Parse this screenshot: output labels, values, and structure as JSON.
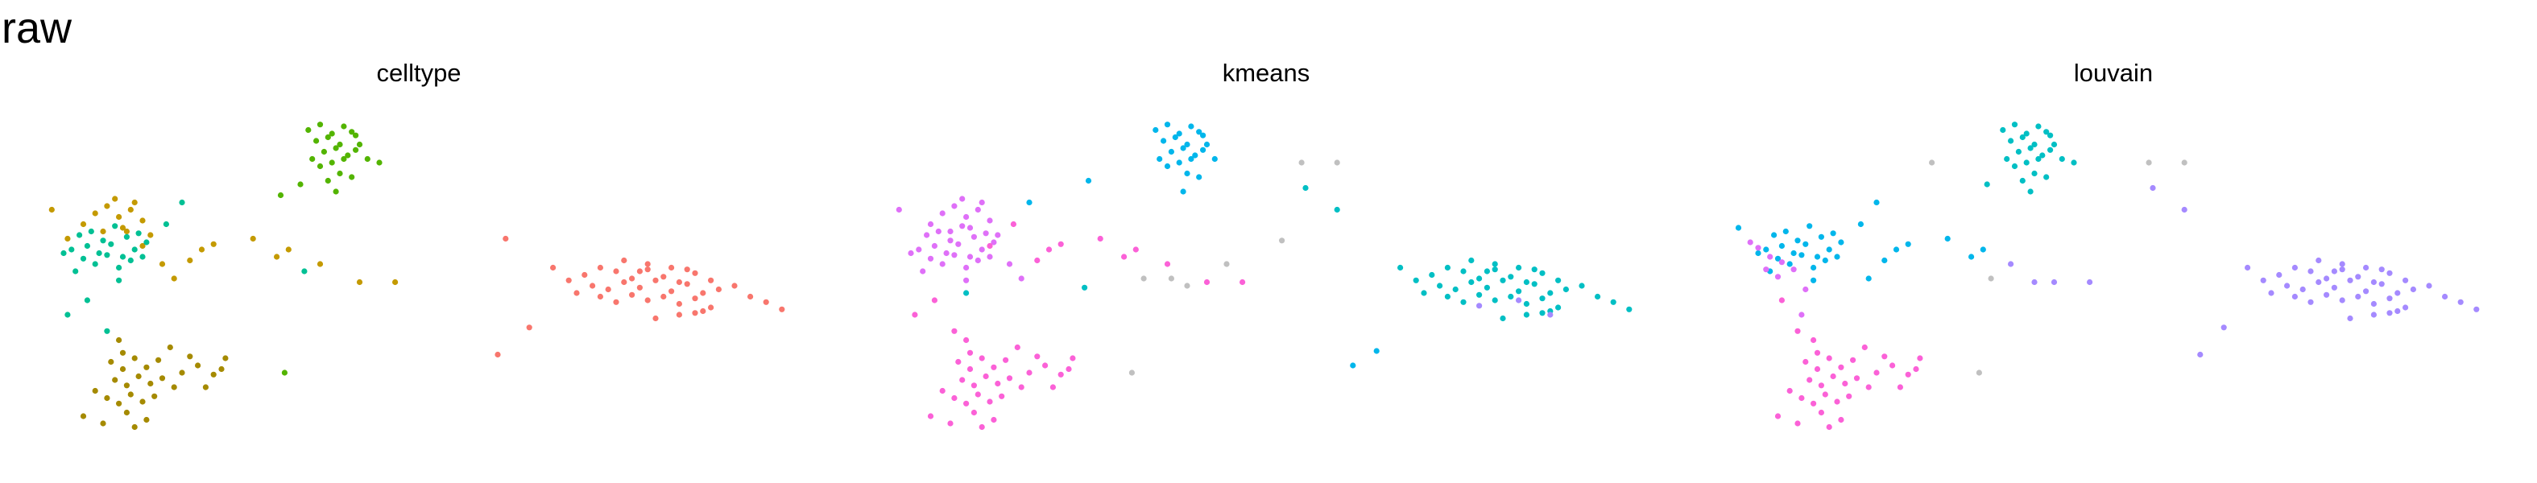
{
  "figure": {
    "title": "raw"
  },
  "chart_data": [
    {
      "type": "scatter",
      "title": "celltype",
      "xlabel": "",
      "ylabel": "",
      "xlim": [
        -10,
        10
      ],
      "ylim": [
        -10,
        10
      ],
      "grid": false,
      "series": [
        {
          "color": "#f8766d",
          "x": [
            4.2,
            4.6,
            5.0,
            5.4,
            5.8,
            6.2,
            6.6,
            7.0,
            7.4,
            4.4,
            4.8,
            5.2,
            5.6,
            6.0,
            6.4,
            6.8,
            7.2,
            7.6,
            8.0,
            4.6,
            5.0,
            5.4,
            5.8,
            6.2,
            6.6,
            7.0,
            7.4,
            5.2,
            5.8,
            6.4,
            7.0,
            3.8,
            3.4,
            8.4,
            8.8,
            9.2,
            6.0,
            6.6,
            7.2,
            5.6,
            6.8,
            4.0
          ],
          "y": [
            0.6,
            1.0,
            0.8,
            0.4,
            0.9,
            0.5,
            0.2,
            0.7,
            0.3,
            0.0,
            -0.2,
            0.2,
            -0.1,
            0.3,
            -0.3,
            0.1,
            -0.4,
            -0.2,
            0.0,
            -0.6,
            -0.9,
            -0.5,
            -0.8,
            -0.6,
            -1.0,
            -0.7,
            -1.2,
            1.4,
            1.2,
            1.0,
            -1.5,
            0.3,
            1.0,
            -0.6,
            -0.9,
            -1.3,
            -1.8,
            -1.6,
            -1.4,
            0.8,
            0.9,
            -0.4
          ]
        },
        {
          "color": "#c49a00",
          "x": [
            -8.2,
            -7.9,
            -7.6,
            -7.3,
            -7.0,
            -8.5,
            -8.0,
            -7.5,
            -7.2,
            -6.8,
            -7.7,
            -6.5,
            -6.2,
            -5.5,
            -5.8,
            -5.2,
            -4.2,
            -3.6,
            -3.3,
            -2.5,
            -1.5,
            -0.6,
            -8.9,
            -9.3,
            -7.4,
            -7.0
          ],
          "y": [
            4.0,
            4.4,
            3.8,
            4.2,
            3.6,
            3.4,
            3.0,
            3.2,
            4.6,
            2.8,
            4.8,
            1.2,
            0.4,
            2.0,
            1.4,
            2.3,
            2.6,
            1.6,
            2.0,
            1.2,
            0.2,
            0.2,
            2.6,
            4.2,
            3.0,
            2.2
          ]
        },
        {
          "color": "#53b400",
          "x": [
            -2.8,
            -2.5,
            -2.2,
            -1.9,
            -2.6,
            -2.3,
            -2.0,
            -1.7,
            -2.4,
            -2.1,
            -1.8,
            -1.5,
            -2.7,
            -2.2,
            -1.9,
            -1.6,
            -2.5,
            -2.0,
            -1.7,
            -1.3,
            -3.0,
            -2.1,
            -1.6,
            -1.0,
            -3.5,
            -2.3
          ],
          "y": [
            8.6,
            8.9,
            8.4,
            8.8,
            8.0,
            8.2,
            7.8,
            8.5,
            7.4,
            7.6,
            7.2,
            7.8,
            7.0,
            6.8,
            7.0,
            8.3,
            6.6,
            6.2,
            6.0,
            7.0,
            5.6,
            5.2,
            7.5,
            6.8,
            5.0,
            5.8
          ]
        },
        {
          "color": "#a58aff",
          "x": [],
          "y": []
        },
        {
          "color": "#00c094",
          "x": [
            -8.6,
            -8.3,
            -8.0,
            -7.7,
            -7.4,
            -7.1,
            -8.8,
            -8.4,
            -8.1,
            -7.8,
            -7.5,
            -7.2,
            -6.9,
            -8.5,
            -8.2,
            -7.9,
            -7.6,
            -7.3,
            -9.0,
            -7.0,
            -8.7,
            -7.6,
            -8.4,
            -7.9,
            -8.9,
            -6.0,
            -6.4,
            -2.9
          ],
          "y": [
            2.8,
            3.0,
            2.5,
            3.3,
            2.7,
            2.9,
            2.0,
            2.2,
            1.8,
            2.3,
            1.6,
            2.0,
            2.4,
            1.5,
            1.2,
            1.7,
            1.0,
            1.4,
            1.8,
            1.6,
            0.8,
            0.3,
            -0.8,
            -2.5,
            -1.6,
            4.6,
            3.4,
            0.8
          ]
        },
        {
          "color": "#a58a00",
          "x": [
            -7.8,
            -7.5,
            -7.2,
            -6.9,
            -6.6,
            -7.7,
            -7.4,
            -7.1,
            -6.8,
            -6.5,
            -6.2,
            -7.9,
            -7.6,
            -7.3,
            -7.0,
            -6.7,
            -8.2,
            -8.5,
            -7.4,
            -8.0,
            -6.0,
            -5.6,
            -5.2,
            -4.9,
            -5.8,
            -5.4,
            -6.3,
            -7.6,
            -6.9,
            -7.2,
            -5.0,
            -7.5
          ],
          "y": [
            -4.2,
            -4.6,
            -4.0,
            -4.5,
            -4.1,
            -5.2,
            -5.5,
            -5.0,
            -5.4,
            -5.1,
            -5.6,
            -6.2,
            -6.5,
            -6.0,
            -6.4,
            -6.1,
            -5.8,
            -7.2,
            -7.0,
            -7.6,
            -4.8,
            -4.4,
            -4.9,
            -4.0,
            -3.9,
            -5.6,
            -3.4,
            -3.0,
            -7.4,
            -7.8,
            -4.6,
            -3.7
          ]
        },
        {
          "color": "#fb61d7",
          "x": [],
          "y": []
        },
        {
          "color": "#00b6eb",
          "x": [],
          "y": []
        },
        {
          "color": "#df70f8",
          "x": [],
          "y": []
        },
        {
          "color": "#53b400",
          "x": [
            -3.4
          ],
          "y": [
            -4.8
          ]
        },
        {
          "color": "#f8766d",
          "x": [
            2.8,
            2.0,
            2.2
          ],
          "y": [
            -2.3,
            -3.8,
            2.6
          ]
        }
      ]
    },
    {
      "type": "scatter",
      "title": "kmeans",
      "xlabel": "",
      "ylabel": "",
      "xlim": [
        -10,
        10
      ],
      "ylim": [
        -10,
        10
      ],
      "grid": false,
      "series": [
        {
          "color": "#df70f8",
          "x": [
            -8.6,
            -8.3,
            -8.0,
            -7.7,
            -7.4,
            -7.1,
            -8.8,
            -8.4,
            -8.1,
            -7.8,
            -7.5,
            -7.2,
            -6.9,
            -8.5,
            -8.2,
            -7.9,
            -7.6,
            -7.3,
            -9.0,
            -7.0,
            -8.7,
            -7.6,
            -8.2,
            -7.9,
            -7.6,
            -7.3,
            -7.0,
            -8.5,
            -8.0,
            -7.5,
            -7.2,
            -6.8,
            -7.7,
            -6.5,
            -6.2,
            -9.3
          ],
          "y": [
            2.8,
            3.0,
            2.5,
            3.3,
            2.7,
            2.9,
            2.0,
            2.2,
            1.8,
            2.3,
            1.6,
            2.0,
            2.4,
            1.5,
            1.2,
            1.7,
            1.0,
            1.4,
            1.8,
            1.6,
            0.8,
            0.3,
            4.0,
            4.4,
            3.8,
            4.2,
            3.6,
            3.4,
            3.0,
            3.2,
            4.6,
            2.8,
            4.8,
            1.2,
            0.4,
            4.2
          ]
        },
        {
          "color": "#fb61d7",
          "x": [
            -7.8,
            -7.5,
            -7.2,
            -6.9,
            -6.6,
            -7.7,
            -7.4,
            -7.1,
            -6.8,
            -6.5,
            -6.2,
            -7.9,
            -7.6,
            -7.3,
            -7.0,
            -6.7,
            -8.2,
            -8.5,
            -7.4,
            -8.0,
            -6.0,
            -5.6,
            -5.2,
            -4.9,
            -5.8,
            -5.4,
            -6.3,
            -7.6,
            -6.9,
            -7.2,
            -5.0,
            -7.5,
            -8.4,
            -8.9,
            -7.9,
            -5.5,
            -5.8,
            -5.2,
            -4.2,
            -3.6,
            -3.3,
            -2.5,
            -1.5,
            -0.6,
            -6.4,
            -7.0
          ],
          "y": [
            -4.2,
            -4.6,
            -4.0,
            -4.5,
            -4.1,
            -5.2,
            -5.5,
            -5.0,
            -5.4,
            -5.1,
            -5.6,
            -6.2,
            -6.5,
            -6.0,
            -6.4,
            -6.1,
            -5.8,
            -7.2,
            -7.0,
            -7.6,
            -4.8,
            -4.4,
            -4.9,
            -4.0,
            -3.9,
            -5.6,
            -3.4,
            -3.0,
            -7.4,
            -7.8,
            -4.6,
            -3.7,
            -0.8,
            -1.6,
            -2.5,
            2.0,
            1.4,
            2.3,
            2.6,
            1.6,
            2.0,
            1.2,
            0.2,
            0.2,
            3.4,
            2.2
          ]
        },
        {
          "color": "#00b6eb",
          "x": [
            -2.8,
            -2.5,
            -2.2,
            -1.9,
            -2.6,
            -2.3,
            -2.0,
            -1.7,
            -2.4,
            -2.1,
            -1.8,
            -1.5,
            -2.7,
            -2.2,
            -1.9,
            -1.6,
            -2.5,
            -2.0,
            -1.7,
            -1.3,
            -2.1,
            -1.6,
            -4.5,
            -6.0,
            2.2,
            2.8
          ],
          "y": [
            8.6,
            8.9,
            8.4,
            8.8,
            8.0,
            8.2,
            7.8,
            8.5,
            7.4,
            7.6,
            7.2,
            7.8,
            7.0,
            6.8,
            7.0,
            8.3,
            6.6,
            6.2,
            6.0,
            7.0,
            5.2,
            7.5,
            5.8,
            4.6,
            -4.4,
            -3.6
          ]
        },
        {
          "color": "#00bfc4",
          "x": [
            4.2,
            4.6,
            5.0,
            5.4,
            5.8,
            6.2,
            6.6,
            7.0,
            7.4,
            4.4,
            4.8,
            5.2,
            5.6,
            6.0,
            6.4,
            6.8,
            7.2,
            7.6,
            8.0,
            4.6,
            5.0,
            5.4,
            5.8,
            6.2,
            6.6,
            7.0,
            7.4,
            5.2,
            5.8,
            6.4,
            7.0,
            3.8,
            3.4,
            8.4,
            8.8,
            9.2,
            6.0,
            6.6,
            7.2,
            5.6,
            6.8,
            4.0,
            1.0,
            1.8,
            -7.6,
            -4.6
          ],
          "y": [
            0.6,
            1.0,
            0.8,
            0.4,
            0.9,
            0.5,
            0.2,
            0.7,
            0.3,
            0.0,
            -0.2,
            0.2,
            -0.1,
            0.3,
            -0.3,
            0.1,
            -0.4,
            -0.2,
            0.0,
            -0.6,
            -0.9,
            -0.5,
            -0.8,
            -0.6,
            -1.0,
            -0.7,
            -1.2,
            1.4,
            1.2,
            1.0,
            -1.5,
            0.3,
            1.0,
            -0.6,
            -0.9,
            -1.3,
            -1.8,
            -1.6,
            -1.4,
            0.8,
            0.9,
            -0.4,
            5.4,
            4.2,
            -0.4,
            -0.1
          ]
        },
        {
          "color": "#a58aff",
          "x": [
            6.4,
            7.2,
            5.4
          ],
          "y": [
            -0.8,
            -1.6,
            -1.1
          ]
        },
        {
          "color": "#c0c0c0",
          "x": [
            -3.4,
            -3.1,
            -2.4,
            -2.0,
            0.9,
            1.8,
            0.4,
            -1.0
          ],
          "y": [
            -4.8,
            0.4,
            0.4,
            0.0,
            6.8,
            6.8,
            2.5,
            1.2
          ]
        }
      ]
    },
    {
      "type": "scatter",
      "title": "louvain",
      "xlabel": "",
      "ylabel": "",
      "xlim": [
        -10,
        10
      ],
      "ylim": [
        -10,
        10
      ],
      "grid": false,
      "series": [
        {
          "color": "#00bfc4",
          "x": [
            -2.8,
            -2.5,
            -2.2,
            -1.9,
            -2.6,
            -2.3,
            -2.0,
            -1.7,
            -2.4,
            -2.1,
            -1.8,
            -1.5,
            -2.7,
            -2.2,
            -1.9,
            -1.6,
            -2.5,
            -2.0,
            -1.7,
            -1.3,
            -2.1,
            -1.6,
            -3.2,
            -2.3,
            -1.0
          ],
          "y": [
            8.6,
            8.9,
            8.4,
            8.8,
            8.0,
            8.2,
            7.8,
            8.5,
            7.4,
            7.6,
            7.2,
            7.8,
            7.0,
            6.8,
            7.0,
            8.3,
            6.6,
            6.2,
            6.0,
            7.0,
            5.2,
            7.5,
            5.6,
            5.8,
            6.8
          ]
        },
        {
          "color": "#00b6eb",
          "x": [
            -8.6,
            -8.3,
            -8.0,
            -7.7,
            -7.4,
            -7.1,
            -8.8,
            -8.4,
            -8.1,
            -7.8,
            -7.5,
            -7.2,
            -6.9,
            -8.5,
            -8.2,
            -7.9,
            -7.6,
            -7.3,
            -9.0,
            -7.0,
            -8.7,
            -7.6,
            -9.5,
            -6.0,
            -6.4,
            -5.8,
            -6.2,
            -4.2,
            -3.6,
            -3.3,
            -5.5,
            -5.2
          ],
          "y": [
            2.8,
            3.0,
            2.5,
            3.3,
            2.7,
            2.9,
            2.0,
            2.2,
            1.8,
            2.3,
            1.6,
            2.0,
            2.4,
            1.5,
            1.2,
            1.7,
            1.0,
            1.4,
            1.8,
            1.6,
            0.8,
            0.3,
            3.2,
            4.6,
            3.4,
            1.4,
            0.4,
            2.6,
            1.6,
            2.0,
            2.0,
            2.3
          ]
        },
        {
          "color": "#df70f8",
          "x": [
            -9.0,
            -8.7,
            -8.4,
            -8.1,
            -8.8,
            -8.5,
            -9.2,
            -7.8,
            -7.9
          ],
          "y": [
            2.1,
            1.6,
            1.3,
            0.9,
            0.9,
            0.5,
            2.4,
            -0.2,
            -1.6
          ]
        },
        {
          "color": "#fb61d7",
          "x": [
            -7.8,
            -7.5,
            -7.2,
            -6.9,
            -6.6,
            -7.7,
            -7.4,
            -7.1,
            -6.8,
            -6.5,
            -6.2,
            -7.9,
            -7.6,
            -7.3,
            -7.0,
            -6.7,
            -8.2,
            -8.5,
            -7.4,
            -8.0,
            -6.0,
            -5.6,
            -5.2,
            -4.9,
            -5.8,
            -5.4,
            -6.3,
            -7.6,
            -6.9,
            -7.2,
            -5.0,
            -7.5,
            -8.4,
            -8.0
          ],
          "y": [
            -4.2,
            -4.6,
            -4.0,
            -4.5,
            -4.1,
            -5.2,
            -5.5,
            -5.0,
            -5.4,
            -5.1,
            -5.6,
            -6.2,
            -6.5,
            -6.0,
            -6.4,
            -6.1,
            -5.8,
            -7.2,
            -7.0,
            -7.6,
            -4.8,
            -4.4,
            -4.9,
            -4.0,
            -3.9,
            -5.6,
            -3.4,
            -3.0,
            -7.4,
            -7.8,
            -4.6,
            -3.7,
            -0.8,
            -2.5
          ]
        },
        {
          "color": "#a58aff",
          "x": [
            4.2,
            4.6,
            5.0,
            5.4,
            5.8,
            6.2,
            6.6,
            7.0,
            7.4,
            4.4,
            4.8,
            5.2,
            5.6,
            6.0,
            6.4,
            6.8,
            7.2,
            7.6,
            8.0,
            4.6,
            5.0,
            5.4,
            5.8,
            6.2,
            6.6,
            7.0,
            7.4,
            5.2,
            5.8,
            6.4,
            7.0,
            3.8,
            3.4,
            8.4,
            8.8,
            9.2,
            6.0,
            6.6,
            7.2,
            5.6,
            6.8,
            4.0,
            1.0,
            1.8,
            2.8,
            -2.6,
            -2.0,
            -1.5,
            -0.6,
            2.2
          ],
          "y": [
            0.6,
            1.0,
            0.8,
            0.4,
            0.9,
            0.5,
            0.2,
            0.7,
            0.3,
            0.0,
            -0.2,
            0.2,
            -0.1,
            0.3,
            -0.3,
            0.1,
            -0.4,
            -0.2,
            0.0,
            -0.6,
            -0.9,
            -0.5,
            -0.8,
            -0.6,
            -1.0,
            -0.7,
            -1.2,
            1.4,
            1.2,
            1.0,
            -1.5,
            0.3,
            1.0,
            -0.6,
            -0.9,
            -1.3,
            -1.8,
            -1.6,
            -1.4,
            0.8,
            0.9,
            -0.4,
            5.4,
            4.2,
            -2.3,
            1.2,
            0.2,
            0.2,
            0.2,
            -3.8
          ]
        },
        {
          "color": "#c0c0c0",
          "x": [
            -3.4,
            -3.1,
            -4.6,
            0.9,
            1.8
          ],
          "y": [
            -4.8,
            0.4,
            6.8,
            6.8,
            6.8
          ]
        }
      ]
    }
  ]
}
